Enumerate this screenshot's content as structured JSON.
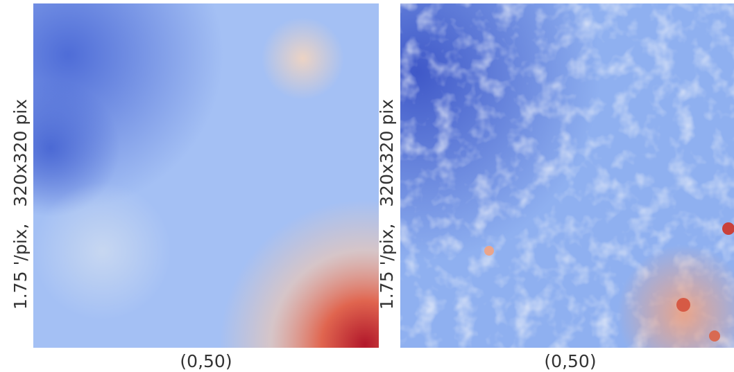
{
  "panels": [
    {
      "ylabel": "1.75 '/pix,   320x320 pix",
      "xlabel": "(0,50)"
    },
    {
      "ylabel": "1.75 '/pix,   320x320 pix",
      "xlabel": "(0,50)"
    }
  ]
}
